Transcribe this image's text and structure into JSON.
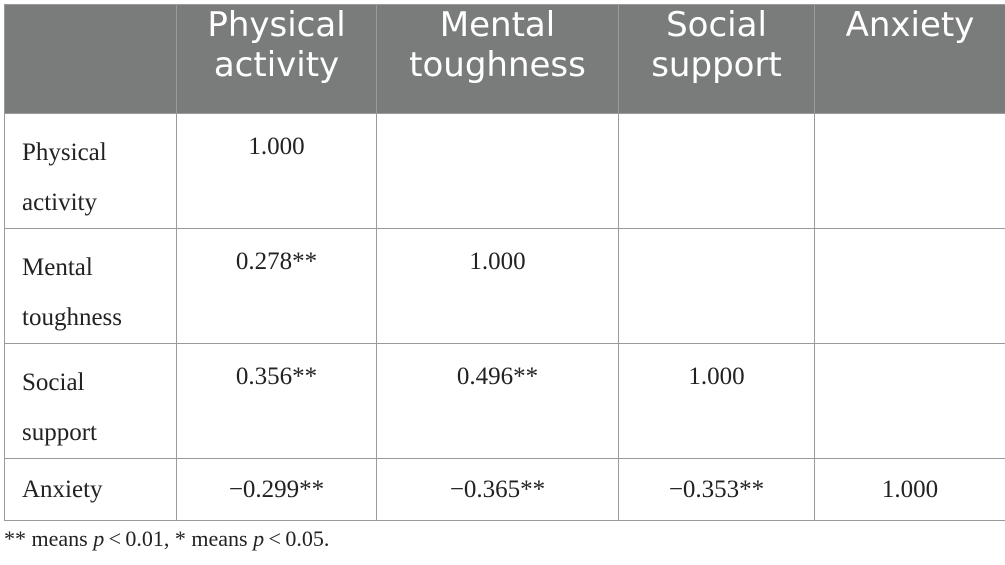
{
  "table": {
    "columns": [
      {
        "line1": "Physical",
        "line2": "activity"
      },
      {
        "line1": "Mental",
        "line2": "toughness"
      },
      {
        "line1": "Social",
        "line2": "support"
      },
      {
        "line1": "Anxiety",
        "line2": ""
      }
    ],
    "rows": [
      {
        "label1": "Physical",
        "label2": "activity",
        "cells": [
          "1.000",
          "",
          "",
          ""
        ]
      },
      {
        "label1": "Mental",
        "label2": "toughness",
        "cells": [
          "0.278**",
          "1.000",
          "",
          ""
        ]
      },
      {
        "label1": "Social",
        "label2": "support",
        "cells": [
          "0.356**",
          "0.496**",
          "1.000",
          ""
        ]
      },
      {
        "label1": "Anxiety",
        "label2": "",
        "cells": [
          "−0.299**",
          "−0.365**",
          "−0.353**",
          "1.000"
        ]
      }
    ]
  },
  "footnote": {
    "part1": "** means ",
    "p1": "p",
    "part2": " < 0.01, * means ",
    "p2": "p",
    "part3": " < 0.05."
  },
  "colors": {
    "header_bg": "#7a7c7b",
    "header_text": "#ffffff",
    "border": "#9a9a9a"
  }
}
